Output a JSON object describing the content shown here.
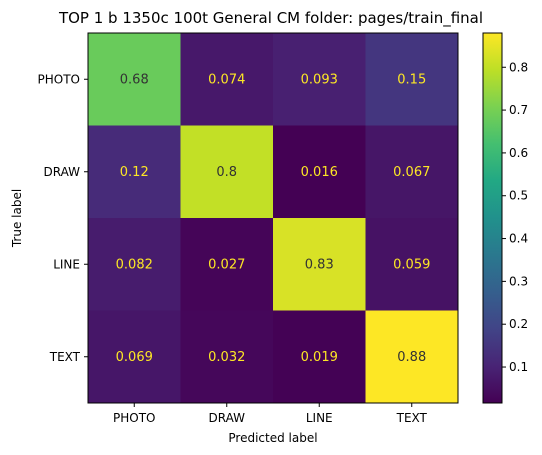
{
  "chart_data": {
    "type": "heatmap",
    "title": "TOP 1 b 1350c 100t  General CM folder: pages/train_final",
    "xlabel": "Predicted label",
    "ylabel": "True label",
    "x_categories": [
      "PHOTO",
      "DRAW",
      "LINE",
      "TEXT"
    ],
    "y_categories": [
      "PHOTO",
      "DRAW",
      "LINE",
      "TEXT"
    ],
    "values": [
      [
        0.68,
        0.074,
        0.093,
        0.15
      ],
      [
        0.12,
        0.8,
        0.016,
        0.067
      ],
      [
        0.082,
        0.027,
        0.83,
        0.059
      ],
      [
        0.069,
        0.032,
        0.019,
        0.88
      ]
    ],
    "cell_labels": [
      [
        "0.68",
        "0.074",
        "0.093",
        "0.15"
      ],
      [
        "0.12",
        "0.8",
        "0.016",
        "0.067"
      ],
      [
        "0.082",
        "0.027",
        "0.83",
        "0.059"
      ],
      [
        "0.069",
        "0.032",
        "0.019",
        "0.88"
      ]
    ],
    "colormap": "viridis",
    "color_range": [
      0.016,
      0.88
    ],
    "colorbar_ticks": [
      0.1,
      0.2,
      0.3,
      0.4,
      0.5,
      0.6,
      0.7,
      0.8
    ],
    "colorbar_tick_labels": [
      "0.1",
      "0.2",
      "0.3",
      "0.4",
      "0.5",
      "0.6",
      "0.7",
      "0.8"
    ],
    "text_colors": {
      "dark_cell": "#fde725",
      "light_cell": "#333333"
    },
    "grid": false
  }
}
